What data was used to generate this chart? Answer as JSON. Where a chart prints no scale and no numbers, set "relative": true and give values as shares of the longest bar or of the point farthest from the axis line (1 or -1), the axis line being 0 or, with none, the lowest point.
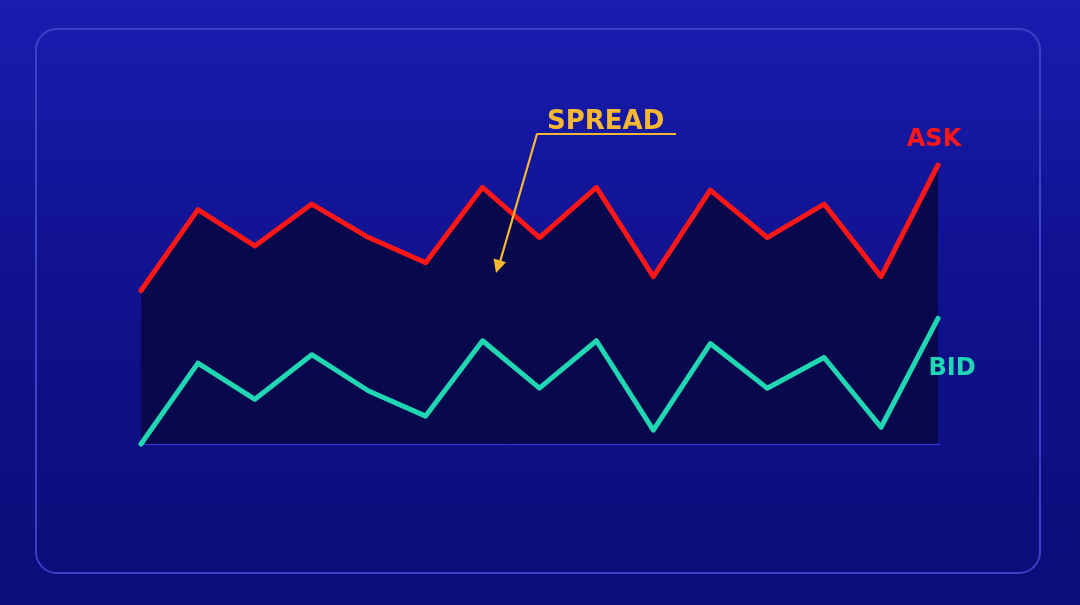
{
  "chart_data": {
    "type": "line",
    "relative": true,
    "categories": [
      null,
      null,
      null,
      null,
      null,
      null,
      null,
      null,
      null,
      null,
      null,
      null,
      null,
      null,
      null
    ],
    "series": [
      {
        "type": "area",
        "color": "#08094c",
        "values": [
          0.55,
          0.84,
          0.71,
          0.86,
          0.74,
          0.65,
          0.92,
          0.74,
          0.92,
          0.6,
          0.91,
          0.74,
          0.86,
          0.6,
          1
        ]
      },
      {
        "name": "ASK",
        "color": "#ff1616",
        "values": [
          0.55,
          0.84,
          0.71,
          0.86,
          0.74,
          0.65,
          0.92,
          0.74,
          0.92,
          0.6,
          0.91,
          0.74,
          0.86,
          0.6,
          1
        ]
      },
      {
        "name": "BID",
        "color": "#20d6b3",
        "values": [
          0,
          0.29,
          0.16,
          0.32,
          0.19,
          0.1,
          0.37,
          0.2,
          0.37,
          0.05,
          0.36,
          0.2,
          0.31,
          0.06,
          0.45
        ]
      }
    ],
    "annotations": [
      "SPREAD"
    ]
  }
}
